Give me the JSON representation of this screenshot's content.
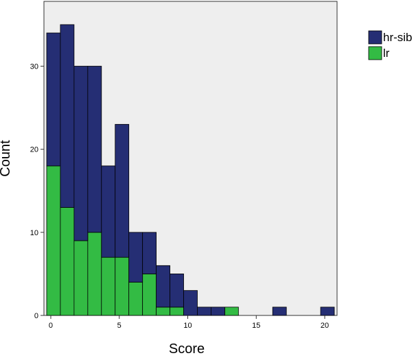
{
  "chart_data": {
    "type": "bar",
    "stacked": true,
    "xlabel": "Score",
    "ylabel": "Count",
    "x_ticks": [
      0,
      5,
      10,
      15,
      20
    ],
    "y_ticks": [
      0,
      10,
      20,
      30
    ],
    "xlim": [
      -0.5,
      20.9
    ],
    "ylim": [
      0,
      37.8
    ],
    "bin_width": 1.0,
    "bin_starts": [
      -0.3,
      0.7,
      1.7,
      2.7,
      3.7,
      4.7,
      5.7,
      6.7,
      7.7,
      8.7,
      9.7,
      10.7,
      11.7,
      12.7,
      16.2,
      19.7
    ],
    "series": [
      {
        "name": "lr",
        "color": "#33bb44",
        "values": [
          18,
          13,
          9,
          10,
          7,
          7,
          4,
          5,
          1,
          1,
          0,
          0,
          0,
          1,
          0,
          0
        ]
      },
      {
        "name": "hr-sib",
        "color": "#252e74",
        "values": [
          16,
          22,
          21,
          20,
          11,
          16,
          6,
          5,
          5,
          4,
          3,
          1,
          1,
          0,
          1,
          1
        ]
      }
    ],
    "legend": {
      "position": "top-right",
      "entries": [
        {
          "label": "hr-sib",
          "color": "#252e74"
        },
        {
          "label": "lr",
          "color": "#33bb44"
        }
      ]
    },
    "plot_background": "#eeeeee",
    "grid": false
  }
}
